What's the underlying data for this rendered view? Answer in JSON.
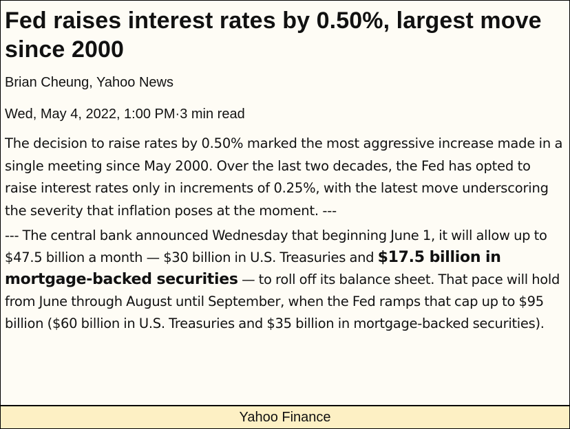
{
  "article": {
    "headline": "Fed raises interest rates by 0.50%, largest move since 2000",
    "byline": "Brian Cheung, Yahoo News",
    "dateline": "Wed, May 4, 2022, 1:00 PM·3 min read",
    "paragraph1": "The decision to raise rates by 0.50% marked the most aggressive increase made in a single meeting since May 2000. Over the last two decades, the Fed has opted to raise interest rates only in increments of 0.25%, with the latest move underscoring the severity that inflation poses at the moment. ---",
    "paragraph2_before": "--- The central bank announced Wednesday that beginning June 1, it will allow up to $47.5 billion a month — $30 billion in U.S. Treasuries and ",
    "paragraph2_bold": "$17.5 billion in mortgage-backed securities",
    "paragraph2_after": " — to roll off its balance sheet. That pace will hold from June through August until September, when the Fed ramps that cap up to $95 billion ($60 billion in U.S. Treasuries and $35 billion in mortgage-backed securities)."
  },
  "footer": {
    "source": "Yahoo Finance"
  },
  "colors": {
    "page_background": "#fefcf5",
    "footer_background": "#fdf0c4",
    "text": "#111111",
    "border": "#000000"
  }
}
